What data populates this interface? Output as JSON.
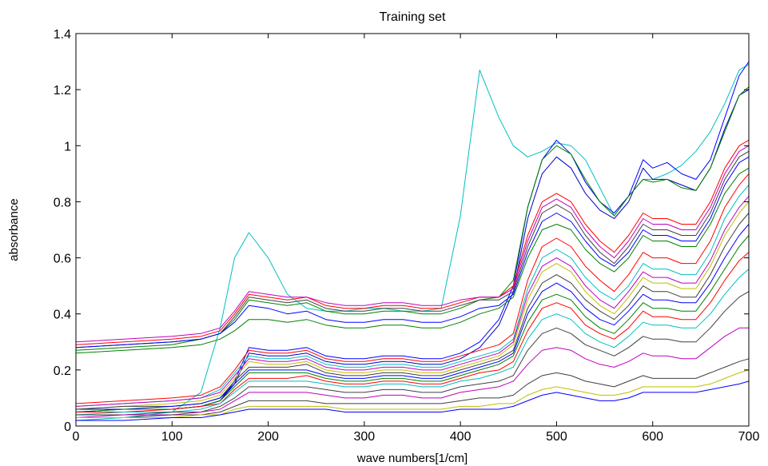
{
  "chart_data": {
    "type": "line",
    "title": "Training set",
    "xlabel": "wave numbers[1/cm]",
    "ylabel": "absorbance",
    "xlim": [
      0,
      700
    ],
    "ylim": [
      0,
      1.4
    ],
    "x_ticks": [
      "0",
      "100",
      "200",
      "300",
      "400",
      "500",
      "600",
      "700"
    ],
    "y_ticks": [
      "0",
      "0.2",
      "0.4",
      "0.6",
      "0.8",
      "1",
      "1.2",
      "1.4"
    ],
    "grid": false,
    "legend": "none",
    "x": [
      0,
      50,
      100,
      130,
      150,
      165,
      180,
      200,
      220,
      240,
      260,
      280,
      300,
      320,
      340,
      360,
      380,
      400,
      420,
      440,
      455,
      470,
      485,
      500,
      515,
      530,
      545,
      560,
      575,
      590,
      600,
      615,
      630,
      645,
      660,
      675,
      690,
      700
    ],
    "series": [
      {
        "color": "#00BFBF",
        "values": [
          0.02,
          0.03,
          0.05,
          0.12,
          0.35,
          0.6,
          0.69,
          0.6,
          0.47,
          0.42,
          0.41,
          0.41,
          0.42,
          0.42,
          0.41,
          0.41,
          0.42,
          0.75,
          1.27,
          1.1,
          1.0,
          0.96,
          0.98,
          1.01,
          1.0,
          0.95,
          0.85,
          0.75,
          0.82,
          0.88,
          0.88,
          0.9,
          0.93,
          0.98,
          1.05,
          1.15,
          1.27,
          1.29
        ]
      },
      {
        "color": "#0000FF",
        "values": [
          0.06,
          0.06,
          0.06,
          0.07,
          0.09,
          0.16,
          0.28,
          0.27,
          0.27,
          0.28,
          0.25,
          0.24,
          0.24,
          0.25,
          0.25,
          0.24,
          0.24,
          0.26,
          0.3,
          0.38,
          0.5,
          0.78,
          0.95,
          1.02,
          0.97,
          0.87,
          0.8,
          0.76,
          0.82,
          0.95,
          0.92,
          0.94,
          0.9,
          0.88,
          0.95,
          1.1,
          1.25,
          1.3
        ]
      },
      {
        "color": "#0000BF",
        "values": [
          0.06,
          0.06,
          0.06,
          0.07,
          0.09,
          0.15,
          0.26,
          0.25,
          0.25,
          0.26,
          0.23,
          0.22,
          0.22,
          0.23,
          0.23,
          0.22,
          0.22,
          0.24,
          0.28,
          0.36,
          0.48,
          0.74,
          0.9,
          0.96,
          0.92,
          0.83,
          0.77,
          0.74,
          0.8,
          0.92,
          0.88,
          0.88,
          0.86,
          0.84,
          0.92,
          1.06,
          1.18,
          1.2
        ]
      },
      {
        "color": "#008000",
        "values": [
          0.27,
          0.28,
          0.29,
          0.31,
          0.33,
          0.38,
          0.45,
          0.44,
          0.43,
          0.44,
          0.41,
          0.4,
          0.4,
          0.41,
          0.41,
          0.4,
          0.4,
          0.42,
          0.45,
          0.46,
          0.52,
          0.78,
          0.95,
          1.0,
          0.97,
          0.88,
          0.8,
          0.75,
          0.82,
          0.88,
          0.87,
          0.88,
          0.85,
          0.84,
          0.92,
          1.05,
          1.18,
          1.21
        ]
      },
      {
        "color": "#FF0000",
        "values": [
          0.29,
          0.3,
          0.31,
          0.32,
          0.34,
          0.4,
          0.47,
          0.46,
          0.45,
          0.46,
          0.43,
          0.42,
          0.42,
          0.43,
          0.43,
          0.42,
          0.42,
          0.44,
          0.46,
          0.46,
          0.5,
          0.68,
          0.8,
          0.83,
          0.8,
          0.72,
          0.66,
          0.62,
          0.68,
          0.76,
          0.74,
          0.74,
          0.72,
          0.72,
          0.8,
          0.92,
          1.0,
          1.02
        ]
      },
      {
        "color": "#BF00BF",
        "values": [
          0.3,
          0.31,
          0.32,
          0.33,
          0.35,
          0.41,
          0.48,
          0.47,
          0.46,
          0.46,
          0.44,
          0.43,
          0.43,
          0.44,
          0.44,
          0.43,
          0.43,
          0.45,
          0.46,
          0.46,
          0.49,
          0.66,
          0.78,
          0.81,
          0.78,
          0.7,
          0.64,
          0.6,
          0.66,
          0.74,
          0.72,
          0.72,
          0.7,
          0.7,
          0.78,
          0.9,
          0.98,
          1.0
        ]
      },
      {
        "color": "#404040",
        "values": [
          0.28,
          0.29,
          0.3,
          0.31,
          0.33,
          0.39,
          0.46,
          0.45,
          0.44,
          0.45,
          0.42,
          0.41,
          0.41,
          0.42,
          0.42,
          0.41,
          0.41,
          0.43,
          0.45,
          0.45,
          0.48,
          0.64,
          0.76,
          0.79,
          0.76,
          0.68,
          0.62,
          0.58,
          0.64,
          0.72,
          0.7,
          0.7,
          0.68,
          0.68,
          0.76,
          0.88,
          0.96,
          0.98
        ]
      },
      {
        "color": "#008000",
        "values": [
          0.26,
          0.27,
          0.28,
          0.29,
          0.31,
          0.34,
          0.38,
          0.38,
          0.37,
          0.38,
          0.36,
          0.35,
          0.35,
          0.36,
          0.36,
          0.35,
          0.35,
          0.37,
          0.4,
          0.42,
          0.46,
          0.6,
          0.7,
          0.72,
          0.7,
          0.63,
          0.58,
          0.55,
          0.6,
          0.68,
          0.66,
          0.66,
          0.64,
          0.64,
          0.72,
          0.83,
          0.9,
          0.92
        ]
      },
      {
        "color": "#0000FF",
        "values": [
          0.28,
          0.29,
          0.3,
          0.31,
          0.33,
          0.37,
          0.43,
          0.42,
          0.4,
          0.41,
          0.38,
          0.37,
          0.37,
          0.38,
          0.38,
          0.37,
          0.37,
          0.39,
          0.42,
          0.43,
          0.47,
          0.62,
          0.73,
          0.76,
          0.73,
          0.66,
          0.6,
          0.57,
          0.62,
          0.7,
          0.68,
          0.68,
          0.66,
          0.66,
          0.74,
          0.86,
          0.94,
          0.96
        ]
      },
      {
        "color": "#FF0000",
        "values": [
          0.08,
          0.09,
          0.1,
          0.11,
          0.14,
          0.2,
          0.27,
          0.26,
          0.26,
          0.27,
          0.24,
          0.23,
          0.23,
          0.24,
          0.24,
          0.23,
          0.23,
          0.25,
          0.27,
          0.29,
          0.33,
          0.52,
          0.64,
          0.67,
          0.64,
          0.57,
          0.52,
          0.48,
          0.54,
          0.62,
          0.6,
          0.6,
          0.58,
          0.58,
          0.66,
          0.78,
          0.86,
          0.9
        ]
      },
      {
        "color": "#00BFBF",
        "values": [
          0.07,
          0.08,
          0.09,
          0.1,
          0.13,
          0.19,
          0.25,
          0.24,
          0.24,
          0.25,
          0.22,
          0.21,
          0.21,
          0.22,
          0.22,
          0.21,
          0.21,
          0.23,
          0.25,
          0.27,
          0.31,
          0.49,
          0.6,
          0.63,
          0.6,
          0.53,
          0.48,
          0.45,
          0.5,
          0.58,
          0.56,
          0.56,
          0.54,
          0.54,
          0.62,
          0.74,
          0.82,
          0.86
        ]
      },
      {
        "color": "#BF00BF",
        "values": [
          0.07,
          0.08,
          0.09,
          0.1,
          0.12,
          0.18,
          0.24,
          0.23,
          0.23,
          0.24,
          0.21,
          0.2,
          0.2,
          0.21,
          0.21,
          0.2,
          0.2,
          0.22,
          0.24,
          0.26,
          0.3,
          0.47,
          0.57,
          0.6,
          0.57,
          0.5,
          0.45,
          0.42,
          0.48,
          0.55,
          0.53,
          0.53,
          0.51,
          0.51,
          0.59,
          0.7,
          0.78,
          0.82
        ]
      },
      {
        "color": "#BFBF00",
        "values": [
          0.06,
          0.07,
          0.08,
          0.09,
          0.11,
          0.17,
          0.23,
          0.22,
          0.22,
          0.23,
          0.2,
          0.19,
          0.19,
          0.2,
          0.2,
          0.19,
          0.19,
          0.21,
          0.23,
          0.25,
          0.29,
          0.45,
          0.55,
          0.58,
          0.55,
          0.48,
          0.43,
          0.4,
          0.46,
          0.53,
          0.51,
          0.51,
          0.49,
          0.49,
          0.57,
          0.68,
          0.76,
          0.8
        ]
      },
      {
        "color": "#404040",
        "values": [
          0.06,
          0.07,
          0.07,
          0.08,
          0.1,
          0.16,
          0.21,
          0.21,
          0.21,
          0.22,
          0.19,
          0.18,
          0.18,
          0.19,
          0.19,
          0.18,
          0.18,
          0.2,
          0.22,
          0.24,
          0.27,
          0.42,
          0.51,
          0.54,
          0.51,
          0.45,
          0.41,
          0.38,
          0.43,
          0.5,
          0.48,
          0.48,
          0.46,
          0.46,
          0.54,
          0.64,
          0.72,
          0.76
        ]
      },
      {
        "color": "#0000FF",
        "values": [
          0.05,
          0.06,
          0.07,
          0.08,
          0.1,
          0.15,
          0.2,
          0.2,
          0.2,
          0.2,
          0.18,
          0.17,
          0.17,
          0.18,
          0.18,
          0.17,
          0.17,
          0.19,
          0.21,
          0.23,
          0.26,
          0.4,
          0.48,
          0.51,
          0.48,
          0.42,
          0.38,
          0.36,
          0.41,
          0.47,
          0.45,
          0.45,
          0.44,
          0.44,
          0.51,
          0.6,
          0.68,
          0.72
        ]
      },
      {
        "color": "#008000",
        "values": [
          0.05,
          0.06,
          0.06,
          0.07,
          0.09,
          0.14,
          0.19,
          0.19,
          0.19,
          0.19,
          0.17,
          0.16,
          0.16,
          0.17,
          0.17,
          0.16,
          0.16,
          0.18,
          0.2,
          0.22,
          0.25,
          0.37,
          0.45,
          0.47,
          0.45,
          0.39,
          0.35,
          0.33,
          0.38,
          0.44,
          0.42,
          0.42,
          0.41,
          0.41,
          0.48,
          0.56,
          0.64,
          0.68
        ]
      },
      {
        "color": "#FF0000",
        "values": [
          0.05,
          0.05,
          0.06,
          0.07,
          0.08,
          0.13,
          0.17,
          0.17,
          0.17,
          0.18,
          0.16,
          0.15,
          0.15,
          0.16,
          0.16,
          0.15,
          0.15,
          0.17,
          0.19,
          0.2,
          0.23,
          0.34,
          0.42,
          0.44,
          0.42,
          0.36,
          0.33,
          0.31,
          0.35,
          0.41,
          0.39,
          0.39,
          0.38,
          0.38,
          0.44,
          0.52,
          0.59,
          0.62
        ]
      },
      {
        "color": "#00BFBF",
        "values": [
          0.04,
          0.05,
          0.05,
          0.06,
          0.08,
          0.12,
          0.16,
          0.16,
          0.16,
          0.16,
          0.15,
          0.14,
          0.14,
          0.15,
          0.15,
          0.14,
          0.14,
          0.16,
          0.17,
          0.19,
          0.21,
          0.31,
          0.38,
          0.4,
          0.38,
          0.33,
          0.3,
          0.28,
          0.32,
          0.37,
          0.36,
          0.36,
          0.35,
          0.35,
          0.4,
          0.47,
          0.53,
          0.56
        ]
      },
      {
        "color": "#404040",
        "values": [
          0.04,
          0.04,
          0.05,
          0.05,
          0.07,
          0.1,
          0.14,
          0.14,
          0.14,
          0.14,
          0.13,
          0.12,
          0.12,
          0.13,
          0.13,
          0.12,
          0.12,
          0.14,
          0.15,
          0.16,
          0.18,
          0.27,
          0.33,
          0.35,
          0.33,
          0.29,
          0.27,
          0.25,
          0.28,
          0.32,
          0.31,
          0.31,
          0.3,
          0.3,
          0.35,
          0.41,
          0.46,
          0.48
        ]
      },
      {
        "color": "#BF00BF",
        "values": [
          0.03,
          0.04,
          0.04,
          0.05,
          0.06,
          0.09,
          0.12,
          0.12,
          0.12,
          0.12,
          0.11,
          0.1,
          0.1,
          0.11,
          0.11,
          0.1,
          0.1,
          0.12,
          0.13,
          0.14,
          0.16,
          0.22,
          0.27,
          0.28,
          0.27,
          0.24,
          0.22,
          0.21,
          0.23,
          0.26,
          0.25,
          0.25,
          0.24,
          0.24,
          0.28,
          0.32,
          0.35,
          0.35
        ]
      },
      {
        "color": "#404040",
        "values": [
          0.03,
          0.03,
          0.04,
          0.04,
          0.05,
          0.07,
          0.09,
          0.09,
          0.09,
          0.09,
          0.08,
          0.08,
          0.08,
          0.08,
          0.08,
          0.08,
          0.08,
          0.09,
          0.1,
          0.1,
          0.11,
          0.15,
          0.18,
          0.19,
          0.18,
          0.16,
          0.15,
          0.14,
          0.16,
          0.18,
          0.17,
          0.17,
          0.17,
          0.17,
          0.19,
          0.21,
          0.23,
          0.24
        ]
      },
      {
        "color": "#BFBF00",
        "values": [
          0.03,
          0.03,
          0.03,
          0.04,
          0.04,
          0.06,
          0.07,
          0.07,
          0.07,
          0.07,
          0.07,
          0.06,
          0.06,
          0.06,
          0.06,
          0.06,
          0.06,
          0.07,
          0.07,
          0.08,
          0.08,
          0.11,
          0.13,
          0.14,
          0.13,
          0.12,
          0.11,
          0.11,
          0.12,
          0.14,
          0.14,
          0.14,
          0.14,
          0.14,
          0.15,
          0.17,
          0.19,
          0.2
        ]
      },
      {
        "color": "#0000FF",
        "values": [
          0.02,
          0.02,
          0.03,
          0.03,
          0.04,
          0.05,
          0.06,
          0.06,
          0.06,
          0.06,
          0.06,
          0.05,
          0.05,
          0.05,
          0.05,
          0.05,
          0.05,
          0.06,
          0.06,
          0.06,
          0.07,
          0.09,
          0.11,
          0.12,
          0.11,
          0.1,
          0.09,
          0.09,
          0.1,
          0.12,
          0.12,
          0.12,
          0.12,
          0.12,
          0.13,
          0.14,
          0.15,
          0.16
        ]
      }
    ]
  }
}
